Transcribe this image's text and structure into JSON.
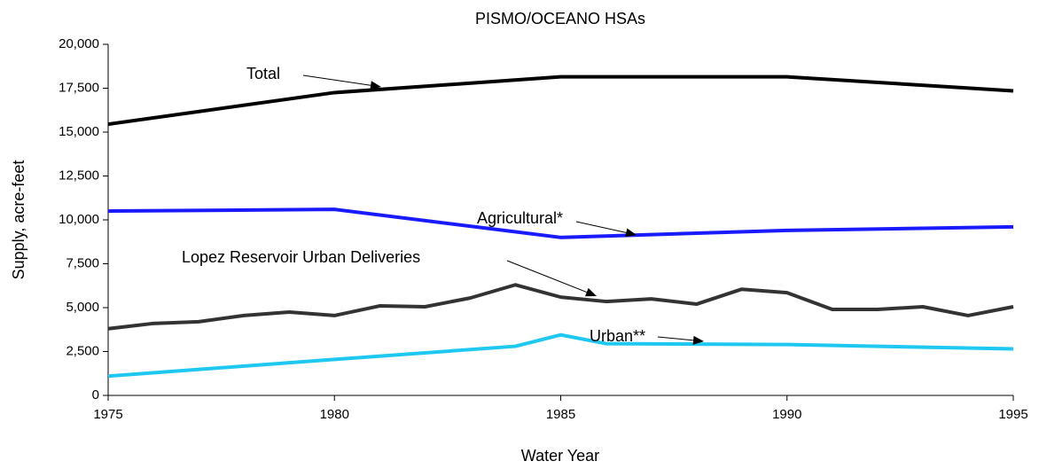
{
  "chart_data": {
    "type": "line",
    "title": "PISMO/OCEANO HSAs",
    "xlabel": "Water Year",
    "ylabel": "Supply, acre-feet",
    "xlim": [
      1975,
      1995
    ],
    "xticks": [
      1975,
      1980,
      1985,
      1990,
      1995
    ],
    "ylim": [
      0,
      20000
    ],
    "yticks": [
      0,
      {
        "value": 2500,
        "label": "2,500"
      },
      {
        "value": 5000,
        "label": "5,000"
      },
      {
        "value": 7500,
        "label": "7,500"
      },
      {
        "value": 10000,
        "label": "10,000"
      },
      {
        "value": 12500,
        "label": "12,500"
      },
      {
        "value": 15000,
        "label": "15,000"
      },
      {
        "value": 17500,
        "label": "17,500"
      },
      {
        "value": 20000,
        "label": "20,000"
      }
    ],
    "grid": false,
    "series": [
      {
        "name": "Total",
        "color": "#000000",
        "x": [
          1975,
          1980,
          1985,
          1990,
          1995
        ],
        "values": [
          15450,
          17250,
          18150,
          18150,
          17350
        ]
      },
      {
        "name": "Agricultural*",
        "color": "#1a1aff",
        "x": [
          1975,
          1980,
          1985,
          1990,
          1995
        ],
        "values": [
          10500,
          10600,
          9000,
          9400,
          9600
        ]
      },
      {
        "name": "Lopez Reservoir Urban Deliveries",
        "color": "#333333",
        "x": [
          1975,
          1976,
          1977,
          1978,
          1979,
          1980,
          1981,
          1982,
          1983,
          1984,
          1985,
          1986,
          1987,
          1988,
          1989,
          1990,
          1991,
          1992,
          1993,
          1994,
          1995
        ],
        "values": [
          3800,
          4100,
          4200,
          4550,
          4750,
          4550,
          5100,
          5050,
          5550,
          6300,
          5600,
          5350,
          5500,
          5200,
          6050,
          5850,
          4900,
          4900,
          5050,
          4550,
          5050
        ]
      },
      {
        "name": "Urban**",
        "color": "#1ec8f0",
        "x": [
          1975,
          1980,
          1984,
          1985,
          1986,
          1990,
          1995
        ],
        "values": [
          1100,
          2050,
          2800,
          3450,
          2950,
          2900,
          2650
        ]
      }
    ]
  }
}
